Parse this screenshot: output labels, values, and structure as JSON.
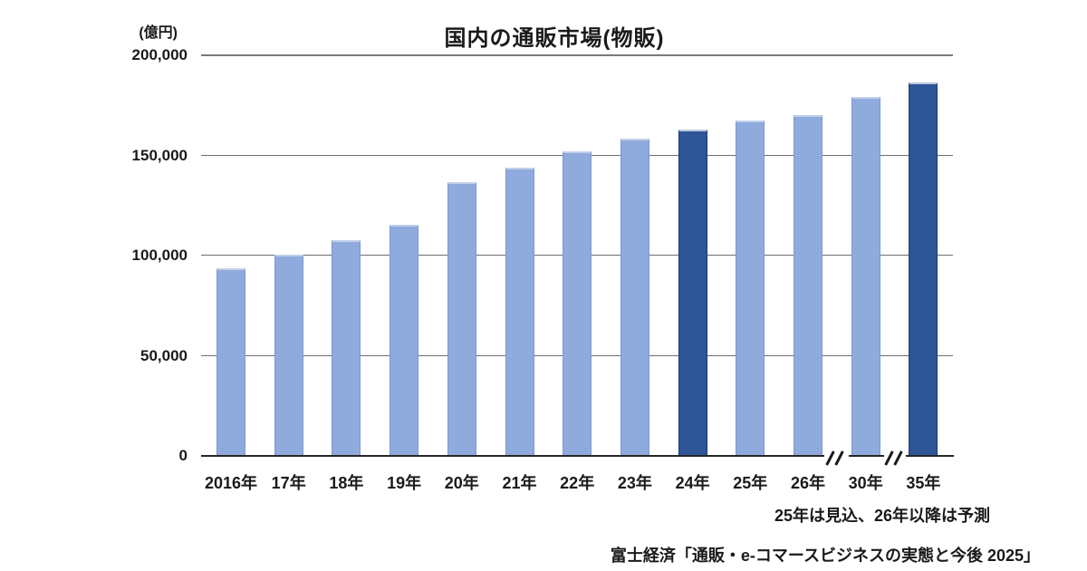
{
  "title": "国内の通販市場(物販)",
  "unit_label": "(億円)",
  "footnote": "25年は見込、26年以降は予測",
  "source": "富士経済「通販・e-コマースビジネスの実態と今後 2025」",
  "colors": {
    "bar_light": "#8FAADC",
    "bar_dark": "#2E5597",
    "gridline": "#6E6E6E",
    "baseline": "#262626",
    "text": "#1A1A1A",
    "background": "#FFFFFF"
  },
  "chart_data": {
    "type": "bar",
    "title": "国内の通販市場(物販)",
    "unit": "億円",
    "categories": [
      "2016年",
      "17年",
      "18年",
      "19年",
      "20年",
      "21年",
      "22年",
      "23年",
      "24年",
      "25年",
      "26年",
      "30年",
      "35年"
    ],
    "values": [
      93500,
      100500,
      107500,
      115500,
      136500,
      144000,
      152000,
      158500,
      163000,
      167500,
      170000,
      179000,
      186500
    ],
    "highlight_indices": [
      8,
      12
    ],
    "highlight_note": "24年と35年は濃い青の棒",
    "yticks": [
      0,
      50000,
      100000,
      150000,
      200000
    ],
    "ytick_labels": [
      "0",
      "50,000",
      "100,000",
      "150,000",
      "200,000"
    ],
    "ylim": [
      0,
      200000
    ],
    "grid": true,
    "legend": "none",
    "axis_breaks": [
      {
        "between": [
          "26年",
          "30年"
        ]
      },
      {
        "between": [
          "30年",
          "35年"
        ]
      }
    ]
  }
}
